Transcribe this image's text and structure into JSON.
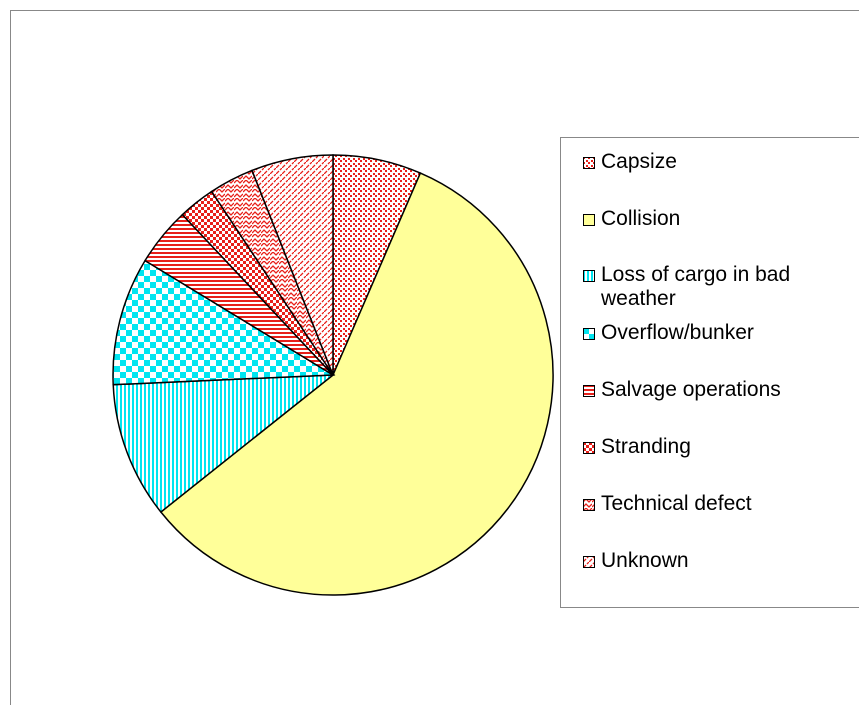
{
  "chart_data": {
    "type": "pie",
    "categories": [
      "Capsize",
      "Collision",
      "Loss of cargo in bad weather",
      "Overflow/bunker",
      "Salvage operations",
      "Stranding",
      "Technical defect",
      "Unknown"
    ],
    "values": [
      6.5,
      57.8,
      10,
      9.4,
      4.3,
      2.7,
      3.3,
      6
    ],
    "colors": [
      "#e8201a",
      "#ffff99",
      "#00e5f0",
      "#00e5f0",
      "#e8201a",
      "#e8201a",
      "#e8201a",
      "#e8201a"
    ],
    "legend": "right"
  }
}
